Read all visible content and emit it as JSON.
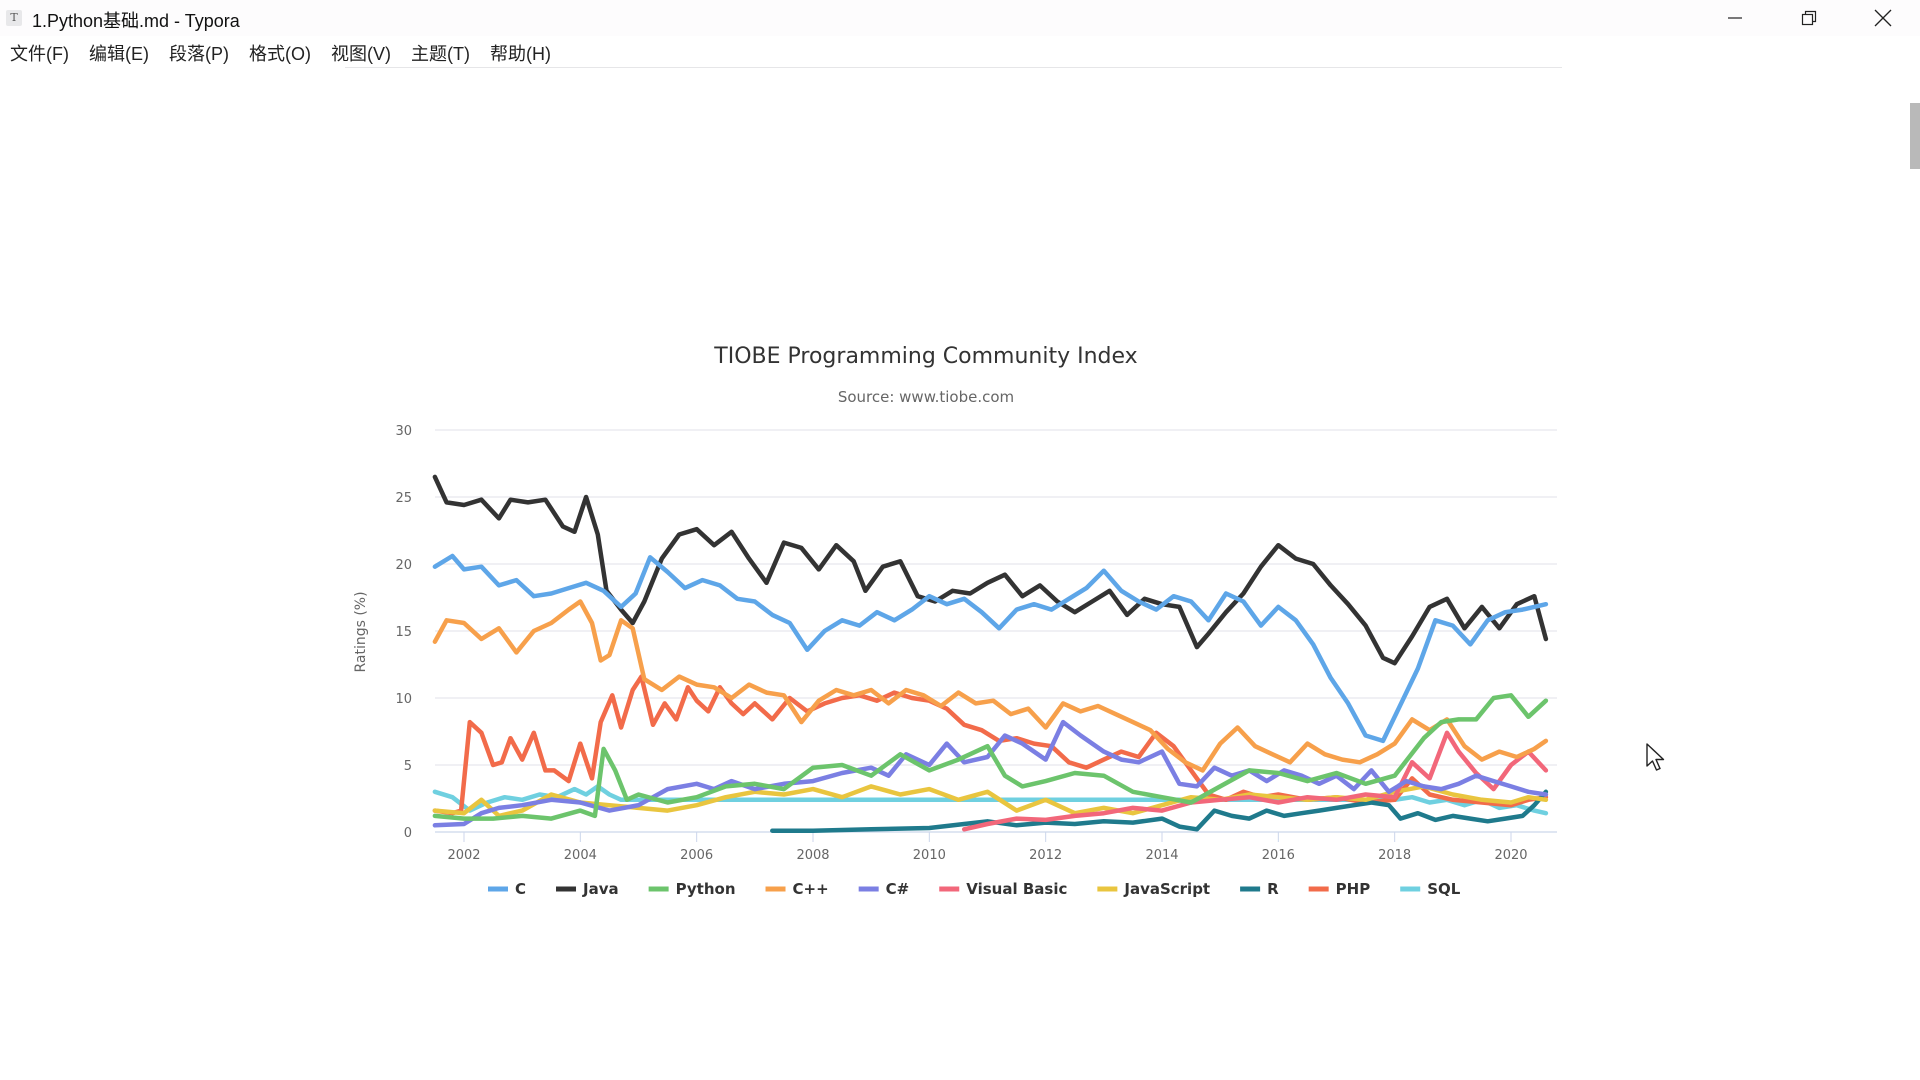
{
  "window": {
    "app_icon_letter": "T",
    "title": "1.Python基础.md - Typora",
    "controls": {
      "minimize": "minimize-icon",
      "restore": "restore-icon",
      "close": "close-icon"
    }
  },
  "menubar": {
    "items": [
      {
        "label": "文件(F)"
      },
      {
        "label": "编辑(E)"
      },
      {
        "label": "段落(P)"
      },
      {
        "label": "格式(O)"
      },
      {
        "label": "视图(V)"
      },
      {
        "label": "主题(T)"
      },
      {
        "label": "帮助(H)"
      }
    ]
  },
  "colors": {
    "gridline": "#e6e6ee",
    "axis": "#ccd6eb",
    "tick_text": "#666666",
    "title_text": "#333333"
  },
  "chart_data": {
    "type": "line",
    "title": "TIOBE Programming Community Index",
    "subtitle": "Source: www.tiobe.com",
    "xlabel": "",
    "ylabel": "Ratings (%)",
    "xlim": [
      2001.5,
      2020.7
    ],
    "ylim": [
      0,
      30
    ],
    "yticks": [
      0,
      5,
      10,
      15,
      20,
      25,
      30
    ],
    "xticks": [
      2002,
      2004,
      2006,
      2008,
      2010,
      2012,
      2014,
      2016,
      2018,
      2020
    ],
    "grid": true,
    "legend": "bottom-center",
    "series": [
      {
        "name": "C",
        "color": "#5ea6e8",
        "x": [
          2001.5,
          2001.8,
          2002.0,
          2002.3,
          2002.6,
          2002.9,
          2003.2,
          2003.5,
          2003.8,
          2004.1,
          2004.4,
          2004.7,
          2004.95,
          2005.2,
          2005.5,
          2005.8,
          2006.1,
          2006.4,
          2006.7,
          2007.0,
          2007.3,
          2007.6,
          2007.9,
          2008.2,
          2008.5,
          2008.8,
          2009.1,
          2009.4,
          2009.7,
          2010.0,
          2010.3,
          2010.6,
          2010.9,
          2011.2,
          2011.5,
          2011.8,
          2012.1,
          2012.4,
          2012.7,
          2013.0,
          2013.3,
          2013.6,
          2013.9,
          2014.2,
          2014.5,
          2014.8,
          2015.1,
          2015.4,
          2015.7,
          2016.0,
          2016.3,
          2016.6,
          2016.9,
          2017.2,
          2017.5,
          2017.8,
          2018.1,
          2018.4,
          2018.7,
          2019.0,
          2019.3,
          2019.6,
          2019.9,
          2020.2,
          2020.6
        ],
        "y": [
          19.8,
          20.6,
          19.6,
          19.8,
          18.4,
          18.8,
          17.6,
          17.8,
          18.2,
          18.6,
          18.0,
          16.8,
          17.8,
          20.5,
          19.4,
          18.2,
          18.8,
          18.4,
          17.4,
          17.2,
          16.2,
          15.6,
          13.6,
          15.0,
          15.8,
          15.4,
          16.4,
          15.8,
          16.6,
          17.6,
          17.0,
          17.4,
          16.4,
          15.2,
          16.6,
          17.0,
          16.6,
          17.4,
          18.2,
          19.5,
          18.0,
          17.2,
          16.6,
          17.6,
          17.2,
          15.8,
          17.8,
          17.2,
          15.4,
          16.8,
          15.8,
          14.0,
          11.5,
          9.6,
          7.2,
          6.8,
          9.5,
          12.2,
          15.8,
          15.4,
          14.0,
          15.8,
          16.4,
          16.6,
          17.0
        ]
      },
      {
        "name": "Java",
        "color": "#333333",
        "x": [
          2001.5,
          2001.7,
          2002.0,
          2002.3,
          2002.6,
          2002.8,
          2003.1,
          2003.4,
          2003.7,
          2003.9,
          2004.1,
          2004.3,
          2004.45,
          2004.7,
          2004.9,
          2005.1,
          2005.4,
          2005.7,
          2006.0,
          2006.3,
          2006.6,
          2006.9,
          2007.2,
          2007.5,
          2007.8,
          2008.1,
          2008.4,
          2008.7,
          2008.9,
          2009.2,
          2009.5,
          2009.8,
          2010.1,
          2010.4,
          2010.7,
          2011.0,
          2011.3,
          2011.6,
          2011.9,
          2012.2,
          2012.5,
          2012.8,
          2013.1,
          2013.4,
          2013.7,
          2014.0,
          2014.3,
          2014.6,
          2014.8,
          2015.1,
          2015.4,
          2015.7,
          2016.0,
          2016.3,
          2016.6,
          2016.9,
          2017.2,
          2017.5,
          2017.8,
          2018.0,
          2018.3,
          2018.6,
          2018.9,
          2019.2,
          2019.5,
          2019.8,
          2020.1,
          2020.4,
          2020.6
        ],
        "y": [
          26.5,
          24.6,
          24.4,
          24.8,
          23.4,
          24.8,
          24.6,
          24.8,
          22.8,
          22.4,
          25.0,
          22.2,
          18.0,
          16.6,
          15.6,
          17.2,
          20.4,
          22.2,
          22.6,
          21.4,
          22.4,
          20.4,
          18.6,
          21.6,
          21.2,
          19.6,
          21.4,
          20.2,
          18.0,
          19.8,
          20.2,
          17.6,
          17.2,
          18.0,
          17.8,
          18.6,
          19.2,
          17.6,
          18.4,
          17.2,
          16.4,
          17.2,
          18.0,
          16.2,
          17.4,
          17.0,
          16.8,
          13.8,
          14.8,
          16.4,
          17.8,
          19.8,
          21.4,
          20.4,
          20.0,
          18.4,
          17.0,
          15.4,
          13.0,
          12.6,
          14.6,
          16.8,
          17.4,
          15.2,
          16.8,
          15.2,
          17.0,
          17.6,
          14.4
        ]
      },
      {
        "name": "Python",
        "color": "#6cc46c",
        "x": [
          2001.5,
          2002.0,
          2002.5,
          2003.0,
          2003.5,
          2004.0,
          2004.25,
          2004.4,
          2004.6,
          2004.8,
          2005.0,
          2005.5,
          2006.0,
          2006.5,
          2007.0,
          2007.5,
          2008.0,
          2008.5,
          2009.0,
          2009.5,
          2010.0,
          2010.5,
          2011.0,
          2011.3,
          2011.6,
          2012.0,
          2012.5,
          2013.0,
          2013.5,
          2014.0,
          2014.5,
          2015.0,
          2015.5,
          2016.0,
          2016.5,
          2017.0,
          2017.5,
          2018.0,
          2018.5,
          2018.8,
          2019.1,
          2019.4,
          2019.7,
          2020.0,
          2020.3,
          2020.6
        ],
        "y": [
          1.2,
          1.0,
          1.0,
          1.2,
          1.0,
          1.6,
          1.2,
          6.2,
          4.6,
          2.4,
          2.8,
          2.2,
          2.6,
          3.4,
          3.6,
          3.2,
          4.8,
          5.0,
          4.2,
          5.8,
          4.6,
          5.4,
          6.4,
          4.2,
          3.4,
          3.8,
          4.4,
          4.2,
          3.0,
          2.6,
          2.2,
          3.4,
          4.6,
          4.4,
          3.8,
          4.4,
          3.6,
          4.2,
          7.0,
          8.2,
          8.4,
          8.4,
          10.0,
          10.2,
          8.6,
          9.8
        ]
      },
      {
        "name": "C++",
        "color": "#f7a04b",
        "x": [
          2001.5,
          2001.7,
          2002.0,
          2002.3,
          2002.6,
          2002.9,
          2003.2,
          2003.5,
          2003.8,
          2004.0,
          2004.2,
          2004.35,
          2004.5,
          2004.7,
          2004.9,
          2005.1,
          2005.4,
          2005.7,
          2006.0,
          2006.3,
          2006.6,
          2006.9,
          2007.2,
          2007.5,
          2007.8,
          2008.1,
          2008.4,
          2008.7,
          2009.0,
          2009.3,
          2009.6,
          2009.9,
          2010.2,
          2010.5,
          2010.8,
          2011.1,
          2011.4,
          2011.7,
          2012.0,
          2012.3,
          2012.6,
          2012.9,
          2013.2,
          2013.5,
          2013.8,
          2014.1,
          2014.4,
          2014.7,
          2015.0,
          2015.3,
          2015.6,
          2015.9,
          2016.2,
          2016.5,
          2016.8,
          2017.1,
          2017.4,
          2017.7,
          2018.0,
          2018.3,
          2018.6,
          2018.9,
          2019.2,
          2019.5,
          2019.8,
          2020.1,
          2020.4,
          2020.6
        ],
        "y": [
          14.2,
          15.8,
          15.6,
          14.4,
          15.2,
          13.4,
          15.0,
          15.6,
          16.6,
          17.2,
          15.6,
          12.8,
          13.2,
          15.8,
          15.2,
          11.4,
          10.6,
          11.6,
          11.0,
          10.8,
          10.0,
          11.0,
          10.4,
          10.2,
          8.2,
          9.8,
          10.6,
          10.2,
          10.6,
          9.6,
          10.6,
          10.2,
          9.4,
          10.4,
          9.6,
          9.8,
          8.8,
          9.2,
          7.8,
          9.6,
          9.0,
          9.4,
          8.8,
          8.2,
          7.6,
          6.2,
          5.2,
          4.6,
          6.6,
          7.8,
          6.4,
          5.8,
          5.2,
          6.6,
          5.8,
          5.4,
          5.2,
          5.8,
          6.6,
          8.4,
          7.6,
          8.4,
          6.4,
          5.4,
          6.0,
          5.6,
          6.2,
          6.8
        ]
      },
      {
        "name": "C#",
        "color": "#7b7fe3",
        "x": [
          2001.5,
          2002.0,
          2002.3,
          2002.6,
          2003.0,
          2003.5,
          2004.0,
          2004.5,
          2005.0,
          2005.5,
          2006.0,
          2006.3,
          2006.6,
          2007.0,
          2007.5,
          2008.0,
          2008.5,
          2009.0,
          2009.3,
          2009.6,
          2010.0,
          2010.3,
          2010.6,
          2011.0,
          2011.3,
          2011.6,
          2012.0,
          2012.3,
          2012.6,
          2013.0,
          2013.3,
          2013.6,
          2014.0,
          2014.3,
          2014.6,
          2014.9,
          2015.2,
          2015.5,
          2015.8,
          2016.1,
          2016.4,
          2016.7,
          2017.0,
          2017.3,
          2017.6,
          2017.9,
          2018.2,
          2018.5,
          2018.8,
          2019.1,
          2019.4,
          2019.7,
          2020.0,
          2020.3,
          2020.6
        ],
        "y": [
          0.5,
          0.6,
          1.4,
          1.8,
          2.0,
          2.4,
          2.2,
          1.6,
          2.0,
          3.2,
          3.6,
          3.2,
          3.8,
          3.2,
          3.6,
          3.8,
          4.4,
          4.8,
          4.2,
          5.8,
          5.0,
          6.6,
          5.2,
          5.6,
          7.2,
          6.6,
          5.4,
          8.2,
          7.2,
          6.0,
          5.4,
          5.2,
          6.0,
          3.6,
          3.4,
          4.8,
          4.2,
          4.6,
          3.8,
          4.6,
          4.2,
          3.6,
          4.2,
          3.2,
          4.6,
          3.0,
          3.8,
          3.4,
          3.2,
          3.6,
          4.2,
          3.8,
          3.4,
          3.0,
          2.8
        ]
      },
      {
        "name": "Visual Basic",
        "color": "#f2677a",
        "x": [
          2010.6,
          2011.0,
          2011.5,
          2012.0,
          2012.5,
          2013.0,
          2013.5,
          2014.0,
          2014.5,
          2015.0,
          2015.5,
          2016.0,
          2016.5,
          2017.0,
          2017.5,
          2018.0,
          2018.3,
          2018.6,
          2018.9,
          2019.1,
          2019.4,
          2019.7,
          2020.0,
          2020.3,
          2020.6
        ],
        "y": [
          0.2,
          0.6,
          1.0,
          0.9,
          1.2,
          1.4,
          1.8,
          1.6,
          2.2,
          2.4,
          2.6,
          2.2,
          2.6,
          2.4,
          2.8,
          2.6,
          5.2,
          4.0,
          7.4,
          6.0,
          4.4,
          3.2,
          5.0,
          6.0,
          4.6
        ]
      },
      {
        "name": "JavaScript",
        "color": "#e9c53f",
        "x": [
          2001.5,
          2002.0,
          2002.3,
          2002.6,
          2003.0,
          2003.5,
          2004.0,
          2004.5,
          2005.0,
          2005.5,
          2006.0,
          2006.5,
          2007.0,
          2007.5,
          2008.0,
          2008.5,
          2009.0,
          2009.5,
          2010.0,
          2010.5,
          2011.0,
          2011.5,
          2012.0,
          2012.5,
          2013.0,
          2013.5,
          2014.0,
          2014.5,
          2015.0,
          2015.5,
          2016.0,
          2016.5,
          2017.0,
          2017.5,
          2018.0,
          2018.5,
          2019.0,
          2019.5,
          2020.0,
          2020.3,
          2020.6
        ],
        "y": [
          1.6,
          1.4,
          2.4,
          1.2,
          1.6,
          2.8,
          2.2,
          2.0,
          1.8,
          1.6,
          2.0,
          2.6,
          3.0,
          2.8,
          3.2,
          2.6,
          3.4,
          2.8,
          3.2,
          2.4,
          3.0,
          1.6,
          2.4,
          1.4,
          1.8,
          1.4,
          2.0,
          2.6,
          2.4,
          2.8,
          2.6,
          2.4,
          2.6,
          2.4,
          3.0,
          3.4,
          2.8,
          2.4,
          2.2,
          2.6,
          2.4
        ]
      },
      {
        "name": "R",
        "color": "#1f7a8c",
        "x": [
          2007.3,
          2008.0,
          2009.0,
          2010.0,
          2010.6,
          2011.0,
          2011.5,
          2012.0,
          2012.5,
          2013.0,
          2013.5,
          2014.0,
          2014.3,
          2014.6,
          2014.9,
          2015.2,
          2015.5,
          2015.8,
          2016.1,
          2016.4,
          2016.7,
          2017.0,
          2017.3,
          2017.6,
          2017.9,
          2018.1,
          2018.4,
          2018.7,
          2019.0,
          2019.3,
          2019.6,
          2019.9,
          2020.2,
          2020.4,
          2020.6
        ],
        "y": [
          0.1,
          0.1,
          0.2,
          0.3,
          0.6,
          0.8,
          0.5,
          0.7,
          0.6,
          0.8,
          0.7,
          1.0,
          0.4,
          0.2,
          1.6,
          1.2,
          1.0,
          1.6,
          1.2,
          1.4,
          1.6,
          1.8,
          2.0,
          2.2,
          2.0,
          1.0,
          1.4,
          0.9,
          1.2,
          1.0,
          0.8,
          1.0,
          1.2,
          2.0,
          3.0
        ]
      },
      {
        "name": "PHP",
        "color": "#f26b4a",
        "x": [
          2001.5,
          2001.8,
          2001.95,
          2002.1,
          2002.3,
          2002.5,
          2002.65,
          2002.8,
          2003.0,
          2003.2,
          2003.4,
          2003.55,
          2003.8,
          2004.0,
          2004.2,
          2004.35,
          2004.55,
          2004.7,
          2004.9,
          2005.05,
          2005.25,
          2005.45,
          2005.65,
          2005.85,
          2006.0,
          2006.2,
          2006.4,
          2006.6,
          2006.8,
          2007.0,
          2007.3,
          2007.6,
          2007.9,
          2008.2,
          2008.5,
          2008.8,
          2009.1,
          2009.4,
          2009.7,
          2010.0,
          2010.3,
          2010.6,
          2010.9,
          2011.2,
          2011.5,
          2011.8,
          2012.1,
          2012.4,
          2012.7,
          2013.0,
          2013.3,
          2013.6,
          2013.9,
          2014.2,
          2014.5,
          2014.8,
          2015.1,
          2015.4,
          2015.7,
          2016.0,
          2016.5,
          2017.0,
          2017.5,
          2018.0,
          2018.3,
          2018.6,
          2019.0,
          2019.5,
          2020.0,
          2020.3,
          2020.6
        ],
        "y": [
          1.6,
          1.4,
          1.6,
          8.2,
          7.4,
          5.0,
          5.2,
          7.0,
          5.4,
          7.4,
          4.6,
          4.6,
          3.8,
          6.6,
          4.0,
          8.2,
          10.2,
          7.8,
          10.6,
          11.6,
          8.0,
          9.6,
          8.4,
          10.8,
          9.8,
          9.0,
          10.8,
          9.6,
          8.8,
          9.6,
          8.4,
          10.0,
          9.0,
          9.6,
          10.0,
          10.2,
          9.8,
          10.4,
          10.0,
          9.8,
          9.2,
          8.0,
          7.6,
          6.8,
          7.0,
          6.6,
          6.4,
          5.2,
          4.8,
          5.4,
          6.0,
          5.6,
          7.4,
          6.4,
          4.6,
          2.8,
          2.4,
          3.0,
          2.6,
          2.8,
          2.4,
          2.6,
          2.2,
          2.4,
          4.0,
          2.8,
          2.4,
          2.2,
          2.0,
          2.4,
          2.6
        ]
      },
      {
        "name": "SQL",
        "color": "#6fd0e0",
        "x": [
          2001.5,
          2001.8,
          2002.1,
          2002.4,
          2002.7,
          2003.0,
          2003.3,
          2003.6,
          2003.9,
          2004.1,
          2004.3,
          2004.5,
          2004.7,
          2004.9,
          2005.5,
          2006.0,
          2007.0,
          2008.0,
          2009.0,
          2010.0,
          2011.0,
          2012.0,
          2013.0,
          2014.0,
          2015.0,
          2016.0,
          2017.0,
          2018.0,
          2018.3,
          2018.6,
          2018.9,
          2019.2,
          2019.5,
          2019.8,
          2020.1,
          2020.4,
          2020.6
        ],
        "y": [
          3.0,
          2.6,
          1.6,
          2.2,
          2.6,
          2.4,
          2.8,
          2.6,
          3.2,
          2.8,
          3.4,
          2.8,
          2.4,
          2.4,
          2.4,
          2.4,
          2.4,
          2.4,
          2.4,
          2.4,
          2.4,
          2.4,
          2.4,
          2.4,
          2.4,
          2.4,
          2.4,
          2.4,
          2.6,
          2.2,
          2.4,
          2.0,
          2.4,
          1.8,
          2.0,
          1.6,
          1.4
        ]
      }
    ]
  }
}
